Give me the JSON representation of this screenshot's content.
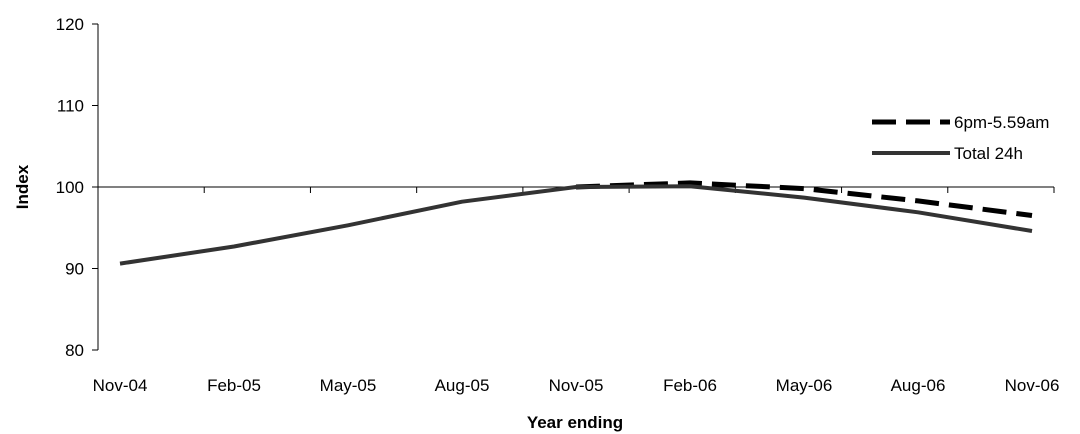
{
  "chart_data": {
    "type": "line",
    "categories": [
      "Nov-04",
      "Feb-05",
      "May-05",
      "Aug-05",
      "Nov-05",
      "Feb-06",
      "May-06",
      "Aug-06",
      "Nov-06"
    ],
    "series": [
      {
        "name": "6pm-5.59am",
        "values": [
          null,
          null,
          null,
          null,
          100.0,
          100.5,
          99.8,
          98.3,
          96.5
        ],
        "color": "#000000",
        "style": "dashed"
      },
      {
        "name": "Total 24h",
        "values": [
          90.6,
          92.7,
          95.3,
          98.2,
          100.0,
          100.1,
          98.7,
          96.9,
          94.6
        ],
        "color": "#333333",
        "style": "solid"
      }
    ],
    "xlabel": "Year ending",
    "ylabel": "Index",
    "ylim": [
      80,
      120
    ],
    "yticks": [
      80,
      90,
      100,
      110,
      120
    ],
    "reference_line": 100,
    "grid": false,
    "legend_position": "right"
  }
}
